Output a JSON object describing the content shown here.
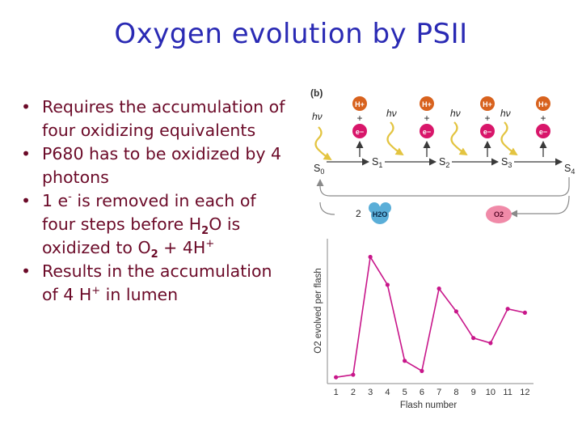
{
  "title": "Oxygen evolution by PSII",
  "bullets": [
    {
      "text": "Requires the accumulation of four oxidizing equivalents"
    },
    {
      "text": "P680 has to be oxidized by 4 photons"
    },
    {
      "a": "1 e",
      "a_sup": "-",
      "b": " is removed in each of four steps before H",
      "b_sub": "2",
      "c": "O is oxidized to O",
      "c_sub": "2",
      "d": " + 4H",
      "d_sup": "+"
    },
    {
      "a": "Results in the accumulation of 4 H",
      "a_sup": "+",
      "b": " in lumen"
    }
  ],
  "scheme": {
    "panel_label": "(b)",
    "hv": "hν",
    "proton": "H+",
    "electron": "e−",
    "plus": "+",
    "states": [
      {
        "base": "S",
        "sub": "0"
      },
      {
        "base": "S",
        "sub": "1"
      },
      {
        "base": "S",
        "sub": "2"
      },
      {
        "base": "S",
        "sub": "3"
      },
      {
        "base": "S",
        "sub": "4"
      }
    ],
    "water_count": "2",
    "water_label": "H2O",
    "oxygen_label": "O2"
  },
  "chart_data": {
    "type": "line",
    "ylabel": "O2 evolved per flash",
    "xlabel": "Flash number",
    "x": [
      1,
      2,
      3,
      4,
      5,
      6,
      7,
      8,
      9,
      10,
      11,
      12
    ],
    "xtick_labels": [
      "1",
      "2",
      "3",
      "4",
      "5",
      "6",
      "7",
      "8",
      "9",
      "10",
      "11",
      "12"
    ],
    "values": [
      0.05,
      0.07,
      1.0,
      0.78,
      0.18,
      0.1,
      0.75,
      0.57,
      0.36,
      0.32,
      0.59,
      0.56
    ],
    "xlim": [
      0.5,
      12.5
    ],
    "ylim": [
      0,
      1.08
    ],
    "grid": false,
    "colors": {
      "line": "#c8168a"
    }
  },
  "colors": {
    "title": "#2a2ab4",
    "bullet_text": "#6b0a28",
    "proton": "#d8621e",
    "electron": "#d8166a",
    "photon": "#e3c440",
    "water": "#5aaed8",
    "oxygen": "#f08aa8"
  }
}
